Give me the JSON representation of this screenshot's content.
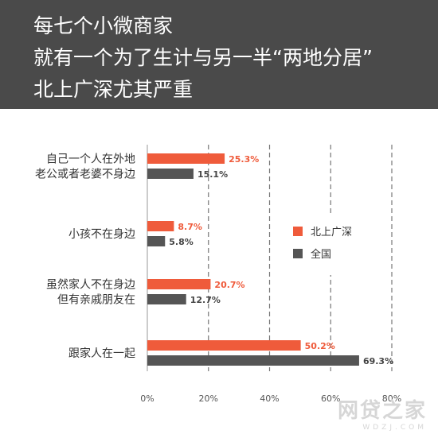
{
  "title_lines": [
    "每七个小微商家",
    "就有一个为了生计与另一半“两地分居”",
    "北上广深尤其严重"
  ],
  "colors": {
    "header_bg": "#4a4a4a",
    "series_1": "#ef5b3b",
    "series_2": "#555555",
    "gridline": "#777777",
    "axis": "#999999"
  },
  "chart_data": {
    "type": "bar",
    "orientation": "horizontal",
    "categories": [
      [
        "自己一个人在外地",
        "老公或者老婆不身边"
      ],
      [
        "小孩不在身边"
      ],
      [
        "虽然家人不在身边",
        "但有亲戚朋友在"
      ],
      [
        "跟家人在一起"
      ]
    ],
    "series": [
      {
        "name": "北上广深",
        "color": "#ef5b3b",
        "values": [
          25.3,
          8.7,
          20.7,
          50.2
        ],
        "labels": [
          "25.3%",
          "8.7%",
          "20.7%",
          "50.2%"
        ]
      },
      {
        "name": "全国",
        "color": "#555555",
        "values": [
          15.1,
          5.8,
          12.7,
          69.3
        ],
        "labels": [
          "15.1%",
          "5.8%",
          "12.7%",
          "69.3%"
        ]
      }
    ],
    "x_ticks": [
      0,
      20,
      40,
      60,
      80
    ],
    "x_tick_labels": [
      "0%",
      "20%",
      "40%",
      "60%",
      "80%"
    ],
    "xlim": [
      0,
      80
    ],
    "grid": true,
    "legend_position": "center-right"
  },
  "watermark": {
    "main": "网贷之家",
    "sub": "WDZJ.COM"
  }
}
